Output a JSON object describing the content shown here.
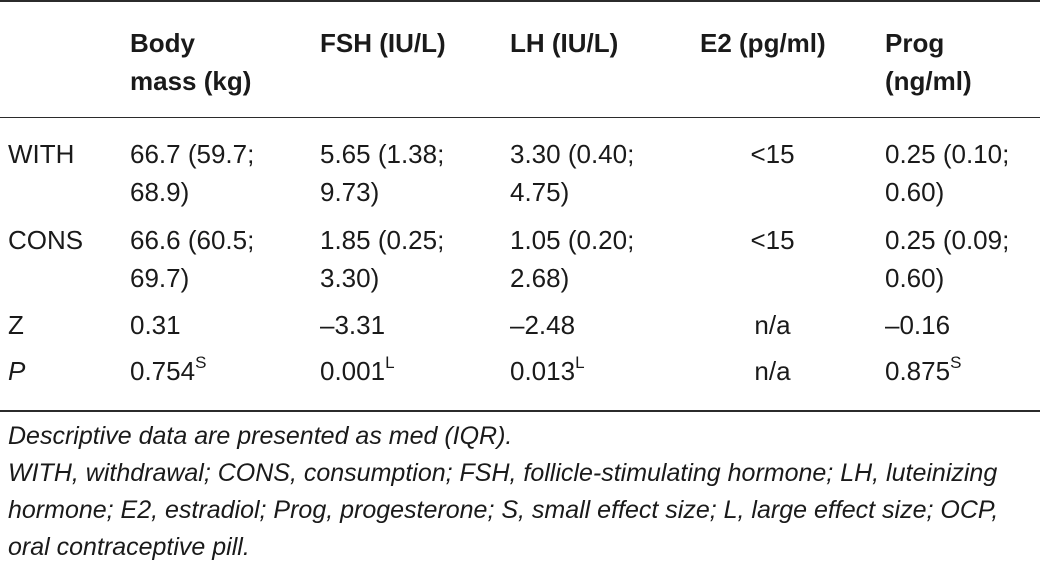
{
  "table": {
    "headers": {
      "group": "",
      "body_mass_l1": "Body",
      "body_mass_l2": "mass (kg)",
      "fsh": "FSH (IU/L)",
      "lh": "LH (IU/L)",
      "e2": "E2 (pg/ml)",
      "prog_l1": "Prog",
      "prog_l2": "(ng/ml)"
    },
    "rows": [
      {
        "label": "WITH",
        "body_mass": [
          "66.7 (59.7;",
          "68.9)"
        ],
        "fsh": [
          "5.65 (1.38;",
          "9.73)"
        ],
        "lh": [
          "3.30 (0.40;",
          "4.75)"
        ],
        "e2": "<15",
        "prog": [
          "0.25 (0.10;",
          "0.60)"
        ]
      },
      {
        "label": "CONS",
        "body_mass": [
          "66.6 (60.5;",
          "69.7)"
        ],
        "fsh": [
          "1.85 (0.25;",
          "3.30)"
        ],
        "lh": [
          "1.05 (0.20;",
          "2.68)"
        ],
        "e2": "<15",
        "prog": [
          "0.25 (0.09;",
          "0.60)"
        ]
      },
      {
        "label": "Z",
        "body_mass": "0.31",
        "fsh": "–3.31",
        "lh": "–2.48",
        "e2": "n/a",
        "prog": "–0.16"
      },
      {
        "label": "P",
        "body_mass": {
          "value": "0.754",
          "sup": "S"
        },
        "fsh": {
          "value": "0.001",
          "sup": "L"
        },
        "lh": {
          "value": "0.013",
          "sup": "L"
        },
        "e2": "n/a",
        "prog": {
          "value": "0.875",
          "sup": "S"
        }
      }
    ]
  },
  "footnotes": [
    "Descriptive data are presented as med (IQR).",
    "WITH, withdrawal; CONS, consumption; FSH, follicle-stimulating hormone; LH, luteinizing hormone; E2, estradiol; Prog, progesterone; S, small effect size; L, large effect size; OCP, oral contraceptive pill."
  ]
}
